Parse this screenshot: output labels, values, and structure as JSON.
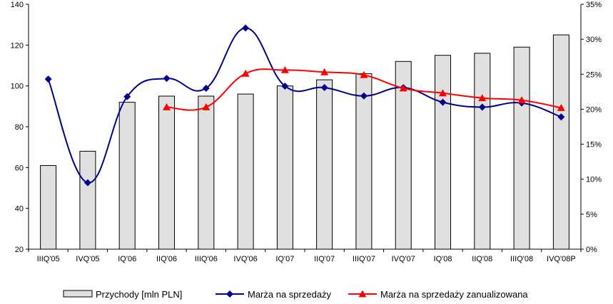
{
  "chart_data": {
    "type": "bar",
    "categories": [
      "IIIQ'05",
      "IVQ'05",
      "IQ'06",
      "IIQ'06",
      "IIIQ'06",
      "IVQ'06",
      "IQ'07",
      "IIQ'07",
      "IIIQ'07",
      "IVQ'07",
      "IQ'08",
      "IIQ'08",
      "IIIQ'08",
      "IVQ'08P"
    ],
    "y_left": {
      "ylim": [
        20,
        140
      ],
      "ticks": [
        "20",
        "40",
        "60",
        "80",
        "100",
        "120",
        "140"
      ]
    },
    "y_right": {
      "ylim": [
        0,
        35
      ],
      "ticks": [
        "0%",
        "5%",
        "10%",
        "15%",
        "20%",
        "25%",
        "30%",
        "35%"
      ]
    },
    "grid": false,
    "legend_position": "bottom",
    "series": [
      {
        "name": "Przychody [mln PLN]",
        "type": "bar",
        "axis": "left",
        "color": "#e0e0e0",
        "values": [
          61,
          68,
          92,
          95,
          95,
          96,
          100,
          103,
          106,
          112,
          115,
          116,
          119,
          125
        ]
      },
      {
        "name": "Marża na sprzedaży",
        "type": "line",
        "axis": "right",
        "color": "#00008b",
        "marker": "diamond",
        "values": [
          24.3,
          9.5,
          21.8,
          24.4,
          23.0,
          31.6,
          23.3,
          23.1,
          21.9,
          23.1,
          21.0,
          20.3,
          20.9,
          18.9
        ]
      },
      {
        "name": "Marża na sprzedaży zanualizowana",
        "type": "line",
        "axis": "right",
        "color": "#ff0000",
        "marker": "triangle",
        "values": [
          null,
          null,
          null,
          20.3,
          20.3,
          25.1,
          25.6,
          25.3,
          24.9,
          23.0,
          22.3,
          21.6,
          21.3,
          20.2
        ]
      }
    ]
  }
}
